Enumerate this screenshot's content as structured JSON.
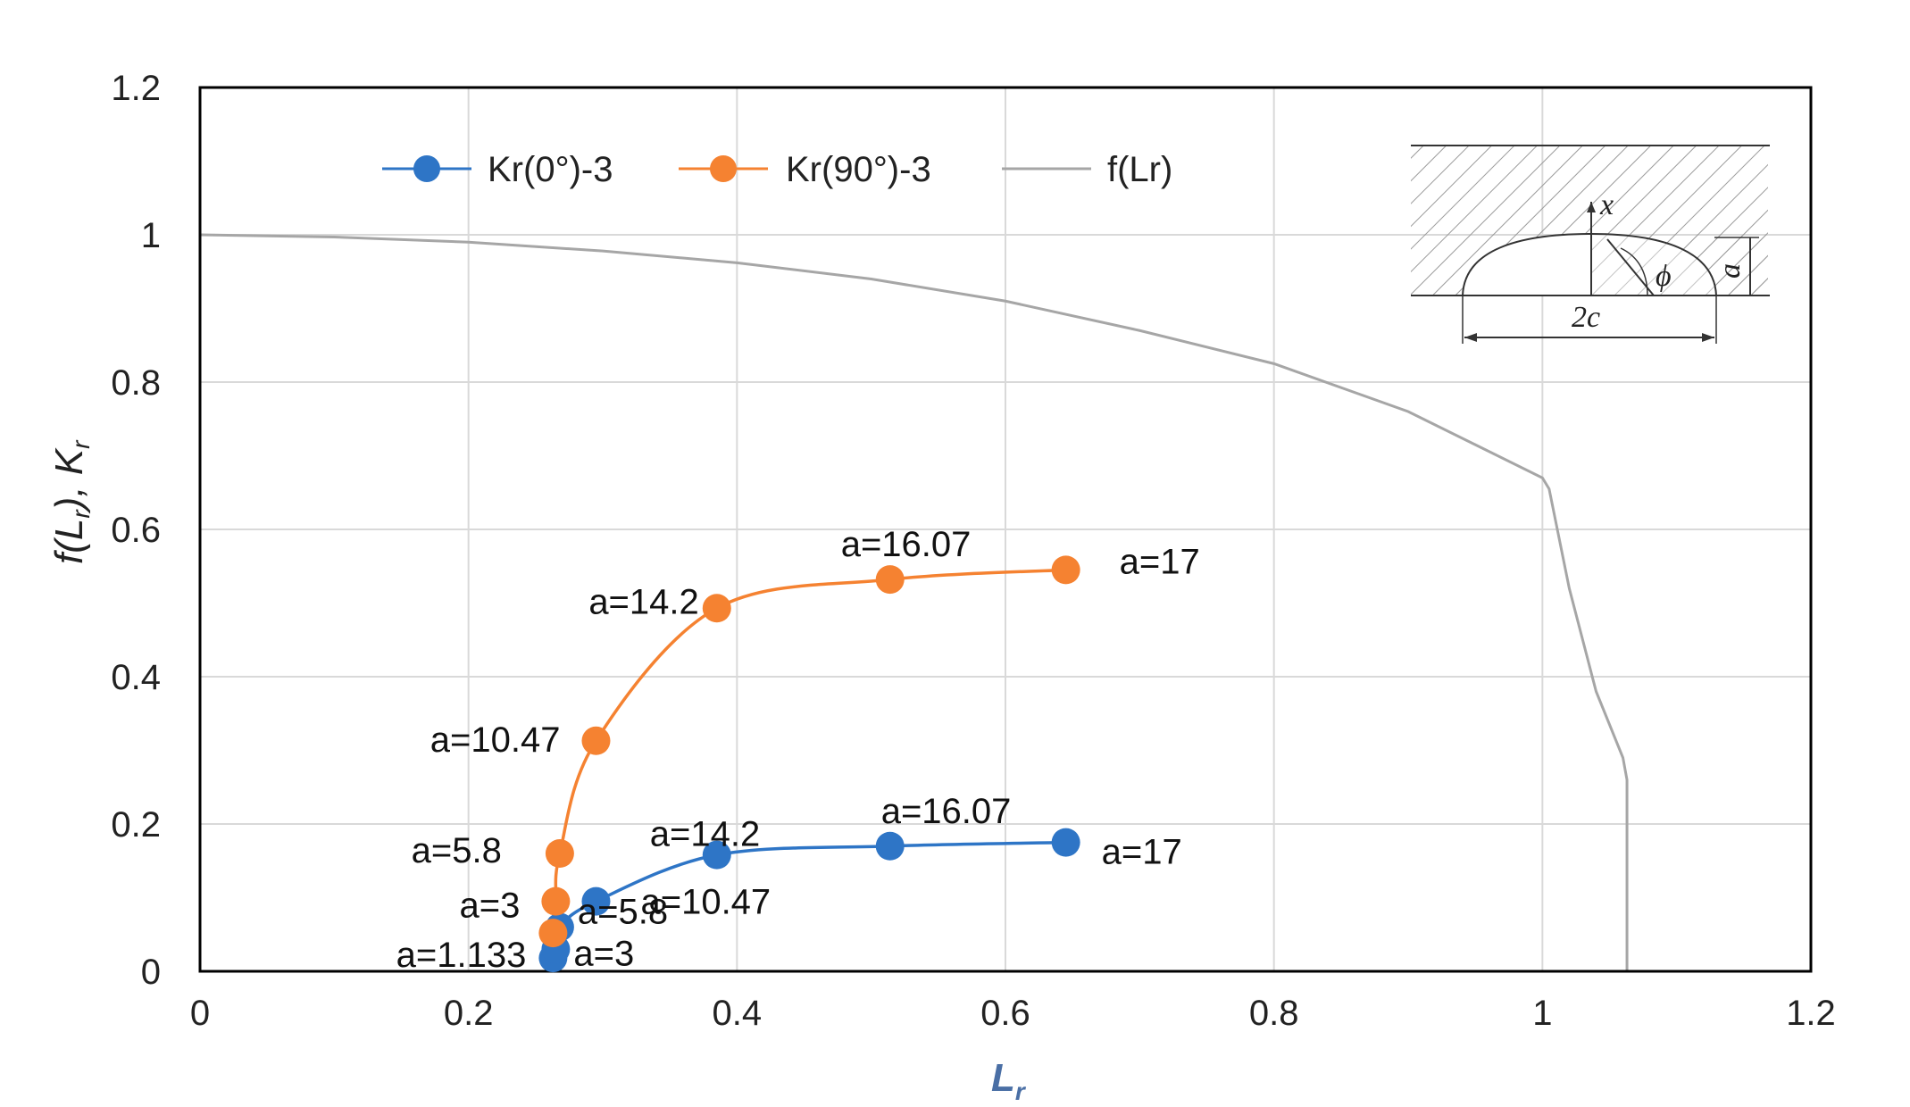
{
  "chart_data": {
    "type": "line",
    "title": "",
    "xlabel": "L",
    "xlabel_sub": "r",
    "ylabel_parts": [
      "f(L",
      "r",
      "),  K",
      "r"
    ],
    "xlim": [
      0,
      1.2
    ],
    "ylim": [
      0,
      1.2
    ],
    "xticks": [
      "0",
      "0.2",
      "0.4",
      "0.6",
      "0.8",
      "1",
      "1.2"
    ],
    "yticks": [
      "0",
      "0.2",
      "0.4",
      "0.6",
      "0.8",
      "1",
      "1.2"
    ],
    "grid": true,
    "legend_position": "top-left",
    "colors": {
      "kr0": "#2e75c6",
      "kr90": "#f58231",
      "flr": "#a6a6a6",
      "grid": "#d9d9d9",
      "axis": "#000000"
    },
    "series": [
      {
        "name": "Kr(0°)-3",
        "key": "kr0",
        "x": [
          0.263,
          0.265,
          0.268,
          0.295,
          0.385,
          0.514,
          0.645
        ],
        "y": [
          0.018,
          0.03,
          0.06,
          0.095,
          0.158,
          0.17,
          0.175
        ],
        "labels": [
          "a=1.133",
          "a=3",
          "a=5.8",
          "a=10.47",
          "a=14.2",
          "a=16.07",
          "a=17"
        ]
      },
      {
        "name": "Kr(90°)-3",
        "key": "kr90",
        "x": [
          0.263,
          0.265,
          0.268,
          0.295,
          0.385,
          0.514,
          0.645
        ],
        "y": [
          0.052,
          0.095,
          0.16,
          0.313,
          0.493,
          0.532,
          0.545
        ],
        "labels": [
          "",
          "a=3",
          "a=5.8",
          "a=10.47",
          "a=14.2",
          "a=16.07",
          "a=17"
        ]
      },
      {
        "name": "f(Lr)",
        "key": "flr",
        "x": [
          0,
          0.1,
          0.2,
          0.3,
          0.4,
          0.5,
          0.6,
          0.7,
          0.8,
          0.9,
          0.95,
          1.0,
          1.005,
          1.01,
          1.02,
          1.04,
          1.06,
          1.063,
          1.063
        ],
        "y": [
          1.0,
          0.997,
          0.99,
          0.978,
          0.962,
          0.94,
          0.91,
          0.87,
          0.825,
          0.76,
          0.715,
          0.67,
          0.655,
          0.61,
          0.52,
          0.38,
          0.29,
          0.26,
          0.0
        ],
        "labels": []
      }
    ],
    "inset": {
      "x_label": "x",
      "phi_label": "ϕ",
      "a_label": "a",
      "width_label": "2c"
    }
  }
}
